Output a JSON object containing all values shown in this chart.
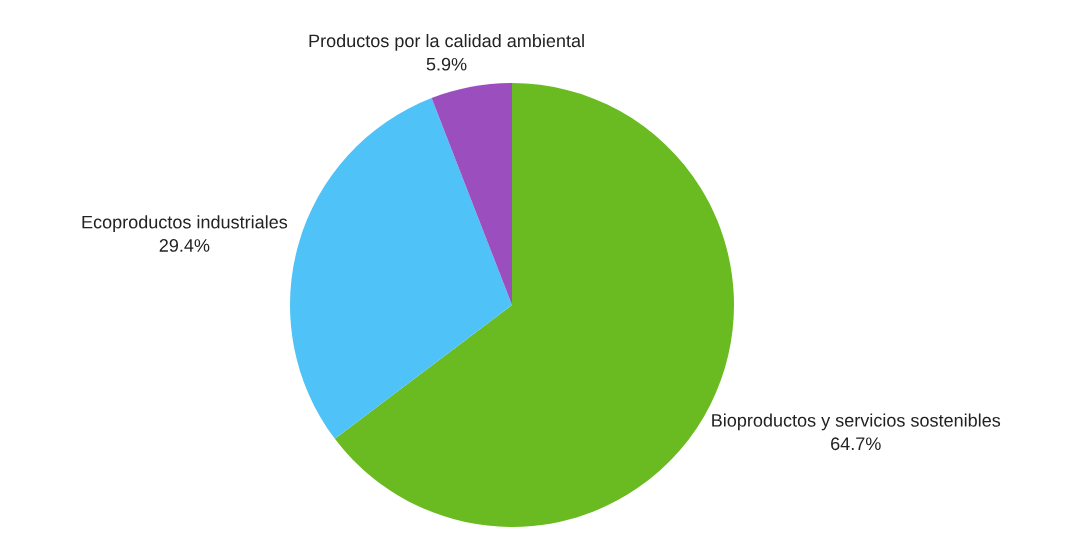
{
  "chart_data": {
    "type": "pie",
    "categories": [
      "Bioproductos y servicios sostenibles",
      "Ecoproductos industriales",
      "Productos por la calidad ambiental"
    ],
    "values": [
      64.7,
      29.4,
      5.9
    ],
    "colors": [
      "#6aba21",
      "#4fc3f7",
      "#9b4fbf"
    ],
    "value_labels": [
      "64.7%",
      "29.4%",
      "5.9%"
    ]
  }
}
